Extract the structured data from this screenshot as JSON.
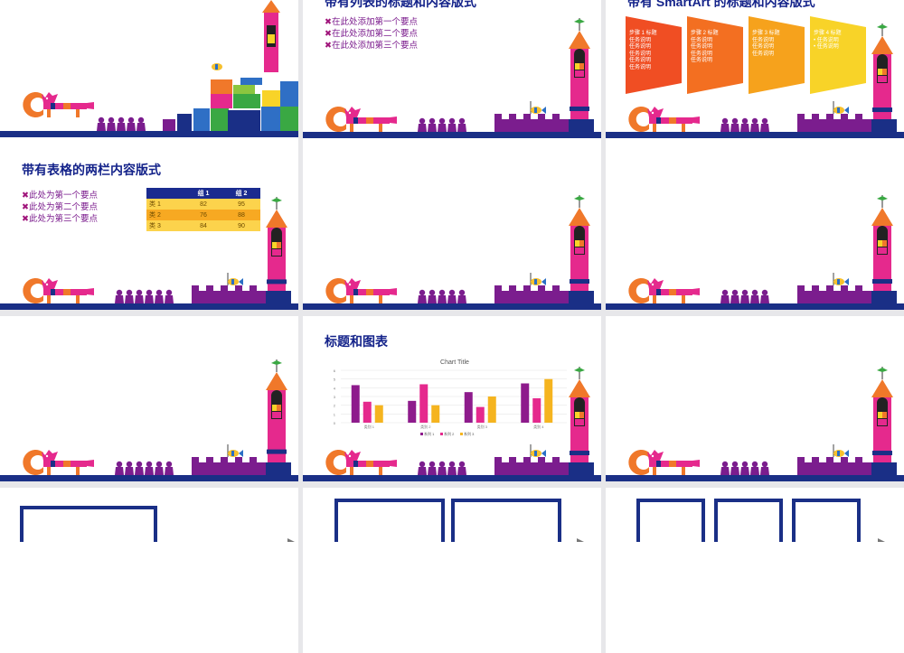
{
  "slides": [
    {
      "id": "slide-1",
      "title": "",
      "bullets": []
    },
    {
      "id": "slide-2",
      "title": "带有列表的标题和内容版式",
      "bullets": [
        "在此处添加第一个要点",
        "在此处添加第二个要点",
        "在此处添加第三个要点"
      ]
    },
    {
      "id": "slide-3",
      "title": "带有 SmartArt 的标题和内容版式",
      "steps": [
        {
          "title": "步骤 1 标题",
          "items": [
            "任务说明",
            "任务说明",
            "任务说明",
            "任务说明",
            "任务说明"
          ]
        },
        {
          "title": "步骤 2 标题",
          "items": [
            "任务说明",
            "任务说明",
            "任务说明",
            "任务说明"
          ]
        },
        {
          "title": "步骤 3 标题",
          "items": [
            "任务说明",
            "任务说明",
            "任务说明"
          ]
        },
        {
          "title": "步骤 4 标题",
          "items": [
            "• 任务说明",
            "• 任务说明"
          ]
        }
      ]
    },
    {
      "id": "slide-4",
      "title": "带有表格的两栏内容版式",
      "bullets": [
        "此处为第一个要点",
        "此处为第二个要点",
        "此处为第三个要点"
      ],
      "table": {
        "headers": [
          "",
          "组 1",
          "组 2"
        ],
        "rows": [
          [
            "类 1",
            "82",
            "95"
          ],
          [
            "类 2",
            "76",
            "88"
          ],
          [
            "类 3",
            "84",
            "90"
          ]
        ]
      }
    },
    {
      "id": "slide-5",
      "title": ""
    },
    {
      "id": "slide-6",
      "title": ""
    },
    {
      "id": "slide-7",
      "title": ""
    },
    {
      "id": "slide-8",
      "title": "标题和图表"
    },
    {
      "id": "slide-9",
      "title": ""
    },
    {
      "id": "slide-10",
      "title": ""
    },
    {
      "id": "slide-11",
      "title": ""
    },
    {
      "id": "slide-12",
      "title": ""
    }
  ],
  "bullet_marker": "✖",
  "colors": {
    "navy": "#1a2f86",
    "purple": "#7b1d8e",
    "magenta": "#e5298d",
    "orange": "#f0782a",
    "yellow": "#f8d328",
    "green": "#3aa843"
  },
  "chart_data": {
    "type": "bar",
    "title": "Chart Title",
    "categories": [
      "类别 1",
      "类别 2",
      "类别 3",
      "类别 4"
    ],
    "series": [
      {
        "name": "系列 1",
        "values": [
          4.3,
          2.5,
          3.5,
          4.5
        ],
        "color": "#8e1b8c"
      },
      {
        "name": "系列 2",
        "values": [
          2.4,
          4.4,
          1.8,
          2.8
        ],
        "color": "#e5298d"
      },
      {
        "name": "系列 3",
        "values": [
          2.0,
          2.0,
          3.0,
          5.0
        ],
        "color": "#f5b41f"
      }
    ],
    "ylim": [
      0,
      6
    ],
    "yticks": [
      "0",
      "1",
      "2",
      "3",
      "4",
      "5",
      "6"
    ],
    "grid": true,
    "legend": "bottom"
  }
}
